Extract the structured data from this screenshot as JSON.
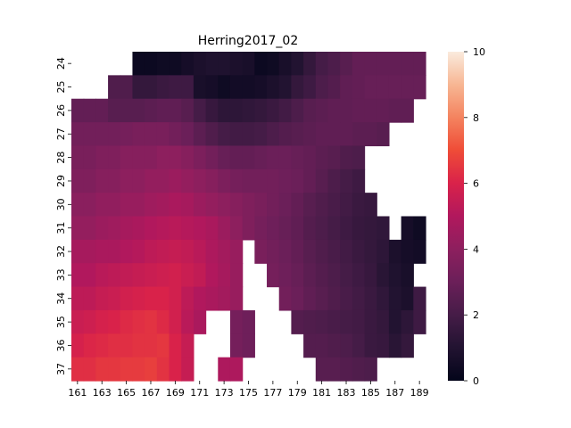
{
  "chart_data": {
    "type": "heatmap",
    "title": "Herring2017_02",
    "xlabel": "",
    "ylabel": "",
    "x": [
      161,
      162,
      163,
      164,
      165,
      166,
      167,
      168,
      169,
      170,
      171,
      172,
      173,
      174,
      175,
      176,
      177,
      178,
      179,
      180,
      181,
      182,
      183,
      184,
      185,
      186,
      187,
      188,
      189
    ],
    "x_tick_labels": [
      "161",
      "163",
      "165",
      "167",
      "169",
      "171",
      "173",
      "175",
      "177",
      "179",
      "181",
      "183",
      "185",
      "187",
      "189"
    ],
    "y": [
      24,
      25,
      26,
      27,
      28,
      29,
      30,
      31,
      32,
      33,
      34,
      35,
      36,
      37
    ],
    "y_tick_labels": [
      "24",
      "25",
      "26",
      "27",
      "28",
      "29",
      "30",
      "31",
      "32",
      "33",
      "34",
      "35",
      "36",
      "37"
    ],
    "colorbar": {
      "min": 0,
      "max": 10,
      "ticks": [
        0,
        2,
        4,
        6,
        8,
        10
      ],
      "colormap": "rocket"
    },
    "missing_value": null,
    "values": [
      [
        null,
        null,
        null,
        null,
        null,
        0.3,
        0.3,
        0.4,
        0.4,
        0.6,
        0.8,
        0.9,
        0.9,
        0.8,
        0.7,
        0.3,
        0.4,
        0.7,
        1.0,
        1.5,
        2.0,
        2.2,
        2.5,
        2.8,
        2.8,
        2.8,
        2.8,
        2.8,
        2.8
      ],
      [
        null,
        null,
        null,
        2.3,
        2.3,
        1.5,
        1.5,
        1.7,
        1.8,
        1.8,
        0.7,
        0.6,
        0.4,
        0.5,
        0.5,
        0.6,
        0.8,
        1.0,
        1.5,
        1.8,
        2.2,
        2.4,
        2.7,
        2.8,
        2.9,
        2.9,
        2.9,
        2.9,
        2.9
      ],
      [
        2.8,
        2.8,
        2.8,
        2.5,
        2.5,
        2.5,
        2.6,
        2.7,
        2.7,
        2.5,
        2.0,
        1.6,
        1.3,
        1.3,
        1.4,
        1.5,
        1.7,
        1.9,
        2.2,
        2.5,
        2.6,
        2.7,
        2.7,
        2.8,
        2.8,
        2.8,
        2.7,
        2.7,
        null
      ],
      [
        3.2,
        3.2,
        3.2,
        3.2,
        3.3,
        3.4,
        3.4,
        3.4,
        3.2,
        3.0,
        2.6,
        2.3,
        2.0,
        1.9,
        1.9,
        2.0,
        2.2,
        2.4,
        2.5,
        2.6,
        2.7,
        2.7,
        2.7,
        2.6,
        2.6,
        2.5,
        null,
        null,
        null
      ],
      [
        3.4,
        3.4,
        3.6,
        3.6,
        3.8,
        3.8,
        3.8,
        4.0,
        4.0,
        3.8,
        3.5,
        3.2,
        2.9,
        2.8,
        2.8,
        2.9,
        3.0,
        3.0,
        2.9,
        2.8,
        2.6,
        2.5,
        2.3,
        2.2,
        null,
        null,
        null,
        null,
        null
      ],
      [
        3.6,
        3.6,
        3.8,
        3.8,
        4.0,
        4.0,
        4.2,
        4.2,
        4.4,
        4.2,
        4.0,
        3.8,
        3.5,
        3.3,
        3.2,
        3.2,
        3.2,
        3.1,
        3.0,
        2.8,
        2.5,
        2.2,
        2.0,
        1.8,
        null,
        null,
        null,
        null,
        null
      ],
      [
        3.9,
        3.9,
        4.1,
        4.1,
        4.3,
        4.3,
        4.5,
        4.6,
        4.8,
        4.7,
        4.4,
        4.2,
        4.0,
        3.8,
        3.6,
        3.4,
        3.2,
        3.0,
        2.8,
        2.5,
        2.3,
        2.1,
        1.9,
        1.7,
        1.6,
        null,
        null,
        null,
        null
      ],
      [
        4.2,
        4.2,
        4.4,
        4.5,
        4.7,
        4.8,
        5.0,
        5.1,
        5.2,
        5.1,
        5.0,
        4.8,
        4.4,
        4.0,
        3.6,
        3.3,
        3.1,
        2.9,
        2.7,
        2.4,
        2.2,
        2.0,
        1.8,
        1.6,
        1.5,
        1.4,
        null,
        0.6,
        0.4
      ],
      [
        4.7,
        4.7,
        4.8,
        4.8,
        5.0,
        5.1,
        5.3,
        5.4,
        5.5,
        5.4,
        5.2,
        4.9,
        4.6,
        4.3,
        null,
        3.4,
        3.2,
        3.0,
        2.8,
        2.5,
        2.3,
        2.1,
        1.9,
        1.7,
        1.5,
        1.3,
        0.8,
        0.6,
        0.5
      ],
      [
        5.0,
        5.0,
        5.2,
        5.3,
        5.4,
        5.5,
        5.6,
        5.7,
        5.8,
        5.6,
        5.4,
        5.0,
        4.7,
        4.3,
        null,
        null,
        3.3,
        3.1,
        2.9,
        2.6,
        2.4,
        2.2,
        2.0,
        1.8,
        1.6,
        1.2,
        0.9,
        0.7,
        null
      ],
      [
        5.3,
        5.3,
        5.5,
        5.6,
        5.8,
        5.9,
        6.0,
        6.0,
        5.8,
        5.3,
        5.0,
        4.8,
        4.6,
        4.3,
        null,
        null,
        null,
        3.2,
        3.0,
        2.7,
        2.5,
        2.3,
        2.1,
        1.9,
        1.7,
        1.4,
        1.0,
        0.8,
        1.8
      ],
      [
        5.6,
        5.7,
        5.9,
        6.0,
        6.2,
        6.3,
        6.4,
        6.2,
        5.8,
        5.2,
        4.8,
        null,
        null,
        3.3,
        3.1,
        null,
        null,
        null,
        2.4,
        2.3,
        2.2,
        2.1,
        2.0,
        1.9,
        1.7,
        1.5,
        1.0,
        1.3,
        1.8
      ],
      [
        5.9,
        6.1,
        6.2,
        6.3,
        6.3,
        6.4,
        6.4,
        6.5,
        6.0,
        5.5,
        null,
        null,
        null,
        3.3,
        3.1,
        null,
        null,
        null,
        null,
        2.4,
        2.4,
        2.3,
        2.2,
        2.0,
        1.7,
        1.6,
        1.2,
        1.5,
        null
      ],
      [
        6.3,
        6.3,
        6.5,
        6.5,
        6.6,
        6.6,
        6.7,
        6.4,
        6.0,
        5.5,
        null,
        null,
        4.9,
        4.9,
        null,
        null,
        null,
        null,
        null,
        null,
        2.5,
        2.5,
        2.4,
        2.3,
        2.2,
        null,
        null,
        null,
        null
      ]
    ]
  }
}
